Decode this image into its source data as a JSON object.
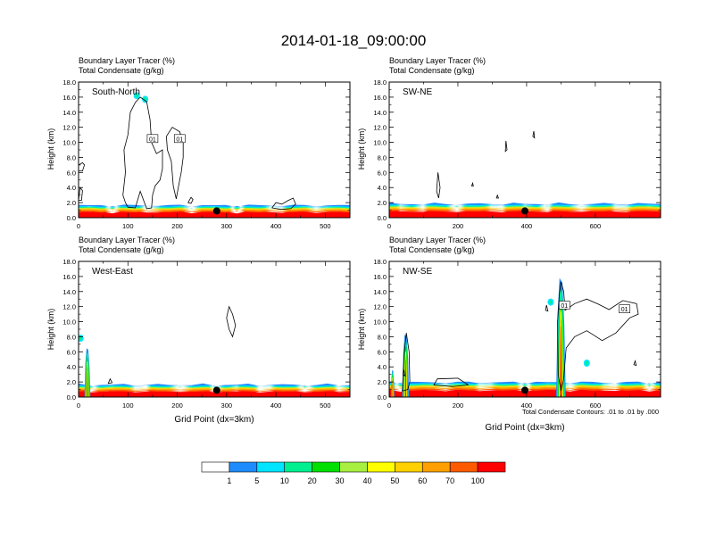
{
  "figure": {
    "title": "2014-01-18_09:00:00",
    "xlabel": "Grid Point (dx=3km)",
    "contour_note": "Total Condensate Contours: .01 to .01 by .000"
  },
  "colorbar": {
    "labels": [
      "1",
      "5",
      "10",
      "20",
      "30",
      "40",
      "50",
      "60",
      "70",
      "100"
    ],
    "colors": [
      "#ffffff",
      "#1e8cff",
      "#00e5ff",
      "#00f090",
      "#00e000",
      "#a8f040",
      "#ffff00",
      "#ffd000",
      "#ffa000",
      "#ff5a00",
      "#ff0000"
    ]
  },
  "contour_color": "#000000",
  "obs_marker_color": "#000000",
  "chart_data": [
    {
      "type": "heatmap",
      "panel": "South-North",
      "title": "South-North",
      "subtitle_1": "Boundary Layer Tracer   (%)",
      "subtitle_2": "Total Condensate   (g/kg)",
      "ylabel": "Height (km)",
      "xlim": [
        0,
        550
      ],
      "ylim": [
        0,
        18
      ],
      "xticks": [
        100,
        200,
        300,
        400,
        500
      ],
      "yticks": [
        0,
        2,
        4,
        6,
        8,
        10,
        12,
        14,
        16,
        18
      ],
      "ytick_labels": [
        "0.0",
        "2.0",
        "4.0",
        "6.0",
        "8.0",
        "10.0",
        "12.0",
        "14.0",
        "16.0",
        "18.0"
      ],
      "boundary_layer_top_km": 1.5,
      "marker": {
        "x": 280,
        "y": 0.9
      },
      "contour_labels": [
        {
          "text": "01",
          "x": 150,
          "y": 10.5
        },
        {
          "text": "01",
          "x": 205,
          "y": 10.5
        }
      ],
      "blobs": [
        {
          "x": 118,
          "y": 16.2,
          "level": "5"
        },
        {
          "x": 135,
          "y": 15.7,
          "level": "5"
        }
      ],
      "clouds": [
        [
          [
            90,
            3
          ],
          [
            95,
            6
          ],
          [
            92,
            9
          ],
          [
            100,
            11
          ],
          [
            105,
            14
          ],
          [
            115,
            15.3
          ],
          [
            125,
            16
          ],
          [
            138,
            15.4
          ],
          [
            145,
            13
          ],
          [
            148,
            10
          ],
          [
            158,
            8.5
          ],
          [
            170,
            9
          ],
          [
            170,
            6.5
          ],
          [
            165,
            5
          ],
          [
            155,
            4.2
          ],
          [
            150,
            3
          ],
          [
            148,
            1.3
          ],
          [
            138,
            1.2
          ],
          [
            125,
            3.5
          ],
          [
            115,
            1.3
          ],
          [
            100,
            1.4
          ],
          [
            95,
            2
          ]
        ],
        [
          [
            178,
            10.8
          ],
          [
            190,
            12
          ],
          [
            205,
            11.4
          ],
          [
            212,
            10
          ],
          [
            212,
            8
          ],
          [
            208,
            6
          ],
          [
            205,
            5
          ],
          [
            198,
            2.5
          ],
          [
            192,
            4.2
          ],
          [
            188,
            7.5
          ],
          [
            180,
            9
          ]
        ],
        [
          [
            0,
            7
          ],
          [
            8,
            7.3
          ],
          [
            12,
            7
          ],
          [
            8,
            6.2
          ],
          [
            0,
            6.2
          ]
        ],
        [
          [
            0,
            2.3
          ],
          [
            3,
            4
          ],
          [
            8,
            3.6
          ],
          [
            6,
            2.3
          ]
        ],
        [
          [
            222,
            2
          ],
          [
            228,
            2.7
          ],
          [
            232,
            2.4
          ],
          [
            228,
            1.9
          ]
        ],
        [
          [
            392,
            1.3
          ],
          [
            400,
            2
          ],
          [
            412,
            1.8
          ],
          [
            425,
            2.3
          ],
          [
            435,
            2.6
          ],
          [
            440,
            1.8
          ],
          [
            430,
            1.2
          ],
          [
            410,
            1.1
          ]
        ]
      ]
    },
    {
      "type": "heatmap",
      "panel": "SW-NE",
      "title": "SW-NE",
      "subtitle_1": "Boundary Layer Tracer   (%)",
      "subtitle_2": "Total Condensate   (g/kg)",
      "ylabel": "Height (km)",
      "xlim": [
        0,
        790
      ],
      "ylim": [
        0,
        18
      ],
      "xticks": [
        200,
        400,
        600
      ],
      "yticks": [
        0,
        2,
        4,
        6,
        8,
        10,
        12,
        14,
        16,
        18
      ],
      "ytick_labels": [
        "0.0",
        "2.0",
        "4.0",
        "6.0",
        "8.0",
        "10.0",
        "12.0",
        "14.0",
        "16.0",
        "18.0"
      ],
      "boundary_layer_top_km": 1.7,
      "marker": {
        "x": 395,
        "y": 0.9
      },
      "contour_labels": [],
      "blobs": [],
      "clouds": [
        [
          [
            138,
            3.5
          ],
          [
            142,
            6
          ],
          [
            148,
            4
          ],
          [
            144,
            2.6
          ]
        ],
        [
          [
            338,
            8.8
          ],
          [
            340,
            10.2
          ],
          [
            343,
            9
          ]
        ],
        [
          [
            418,
            10.8
          ],
          [
            421,
            11.5
          ],
          [
            423,
            10.6
          ]
        ],
        [
          [
            312,
            2.6
          ],
          [
            315,
            3
          ],
          [
            318,
            2.6
          ]
        ],
        [
          [
            240,
            4.2
          ],
          [
            243,
            4.6
          ],
          [
            245,
            4.2
          ]
        ]
      ]
    },
    {
      "type": "heatmap",
      "panel": "West-East",
      "title": "West-East",
      "subtitle_1": "Boundary Layer Tracer   (%)",
      "subtitle_2": "Total Condensate   (g/kg)",
      "ylabel": "Height (km)",
      "xlim": [
        0,
        550
      ],
      "ylim": [
        0,
        18
      ],
      "xticks": [
        100,
        200,
        300,
        400,
        500
      ],
      "yticks": [
        0,
        2,
        4,
        6,
        8,
        10,
        12,
        14,
        16,
        18
      ],
      "ytick_labels": [
        "0.0",
        "2.0",
        "4.0",
        "6.0",
        "8.0",
        "10.0",
        "12.0",
        "14.0",
        "16.0",
        "18.0"
      ],
      "boundary_layer_top_km": 1.5,
      "marker": {
        "x": 280,
        "y": 0.9
      },
      "contour_labels": [],
      "blobs": [
        {
          "x": 4,
          "y": 7.8,
          "level": "5"
        }
      ],
      "plumes": [
        {
          "x": 18,
          "top": 6.5,
          "width": 12
        }
      ],
      "clouds": [
        [
          [
            300,
            10.5
          ],
          [
            305,
            12
          ],
          [
            312,
            11
          ],
          [
            318,
            9.5
          ],
          [
            312,
            8
          ],
          [
            305,
            9
          ]
        ],
        [
          [
            60,
            1.8
          ],
          [
            64,
            2.4
          ],
          [
            68,
            1.9
          ]
        ]
      ]
    },
    {
      "type": "heatmap",
      "panel": "NW-SE",
      "title": "NW-SE",
      "subtitle_1": "Boundary Layer Tracer   (%)",
      "subtitle_2": "Total Condensate   (g/kg)",
      "ylabel": "Height (km)",
      "xlim": [
        0,
        790
      ],
      "ylim": [
        0,
        18
      ],
      "xticks": [
        200,
        400,
        600
      ],
      "yticks": [
        0,
        2,
        4,
        6,
        8,
        10,
        12,
        14,
        16,
        18
      ],
      "ytick_labels": [
        "0.0",
        "2.0",
        "4.0",
        "6.0",
        "8.0",
        "10.0",
        "12.0",
        "14.0",
        "16.0",
        "18.0"
      ],
      "boundary_layer_top_km": 1.8,
      "marker": {
        "x": 395,
        "y": 0.9
      },
      "contour_labels": [
        {
          "text": "01",
          "x": 510,
          "y": 12.2
        },
        {
          "text": "01",
          "x": 685,
          "y": 11.7
        }
      ],
      "blobs": [
        {
          "x": 470,
          "y": 12.6,
          "level": "5"
        },
        {
          "x": 575,
          "y": 4.5,
          "level": "5"
        }
      ],
      "plumes": [
        {
          "x": 500,
          "top": 15.8,
          "width": 28
        },
        {
          "x": 48,
          "top": 8.3,
          "width": 20
        },
        {
          "x": 10,
          "top": 3.6,
          "width": 10
        }
      ],
      "clouds": [
        [
          [
            490,
            10
          ],
          [
            495,
            13.5
          ],
          [
            500,
            15.3
          ],
          [
            508,
            14
          ],
          [
            512,
            11.5
          ],
          [
            540,
            12.4
          ],
          [
            575,
            13
          ],
          [
            610,
            12.3
          ],
          [
            640,
            11.6
          ],
          [
            680,
            12.8
          ],
          [
            720,
            12.4
          ],
          [
            725,
            11
          ],
          [
            700,
            10.5
          ],
          [
            660,
            8.5
          ],
          [
            620,
            7.5
          ],
          [
            575,
            8.8
          ],
          [
            540,
            8
          ],
          [
            515,
            6.5
          ],
          [
            508,
            2.5
          ],
          [
            500,
            0.8
          ],
          [
            492,
            3
          ]
        ],
        [
          [
            38,
            0.8
          ],
          [
            44,
            6
          ],
          [
            50,
            8.5
          ],
          [
            58,
            6
          ],
          [
            60,
            2
          ],
          [
            54,
            1
          ]
        ],
        [
          [
            130,
            1.6
          ],
          [
            140,
            2.4
          ],
          [
            200,
            2.5
          ],
          [
            230,
            1.6
          ],
          [
            185,
            1.4
          ]
        ],
        [
          [
            455,
            11.5
          ],
          [
            458,
            12.2
          ],
          [
            462,
            11.4
          ]
        ],
        [
          [
            712,
            4.3
          ],
          [
            716,
            4.8
          ],
          [
            719,
            4.2
          ]
        ],
        [
          [
            40,
            3
          ],
          [
            43,
            3.6
          ],
          [
            46,
            2.8
          ]
        ]
      ]
    }
  ]
}
